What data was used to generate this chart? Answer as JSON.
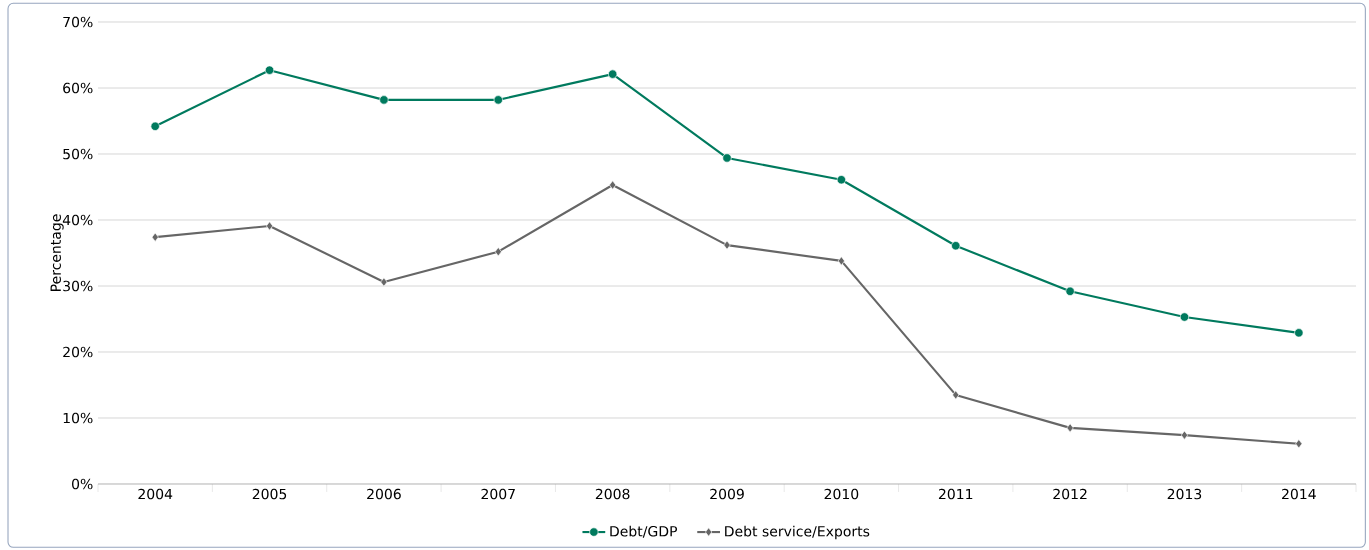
{
  "chart_data": {
    "type": "line",
    "ylabel": "Percentage",
    "categories": [
      "2004",
      "2005",
      "2006",
      "2007",
      "2008",
      "2009",
      "2010",
      "2011",
      "2012",
      "2013",
      "2014"
    ],
    "series": [
      {
        "name": "Debt/GDP",
        "color": "#007a5e",
        "marker": "circle",
        "values": [
          54.2,
          62.7,
          58.2,
          58.2,
          62.1,
          49.4,
          46.1,
          36.1,
          29.2,
          25.3,
          22.9
        ]
      },
      {
        "name": "Debt service/Exports",
        "color": "#666666",
        "marker": "diamond",
        "values": [
          37.4,
          39.1,
          30.6,
          35.2,
          45.3,
          36.2,
          33.8,
          13.5,
          8.5,
          7.4,
          6.1
        ]
      }
    ],
    "ylim": [
      0,
      70
    ],
    "yticks": [
      {
        "value": 0,
        "label": "0%"
      },
      {
        "value": 10,
        "label": "10%"
      },
      {
        "value": 20,
        "label": "20%"
      },
      {
        "value": 30,
        "label": "30%"
      },
      {
        "value": 40,
        "label": "40%"
      },
      {
        "value": 50,
        "label": "50%"
      },
      {
        "value": 60,
        "label": "60%"
      },
      {
        "value": 70,
        "label": "70%"
      }
    ],
    "grid": "y",
    "legend": "bottom"
  }
}
